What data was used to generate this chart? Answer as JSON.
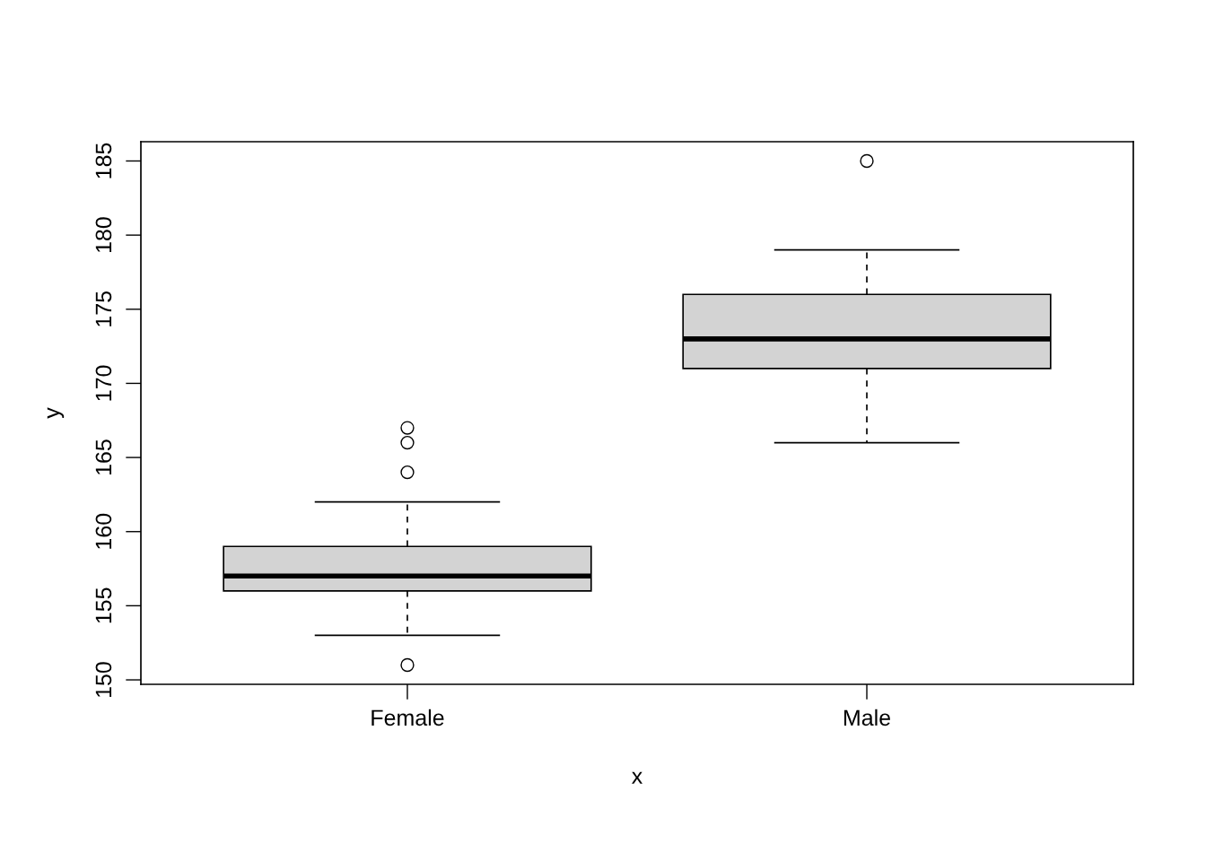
{
  "chart_data": {
    "type": "box",
    "xlabel": "x",
    "ylabel": "y",
    "categories": [
      "Female",
      "Male"
    ],
    "boxes": [
      {
        "low": 153,
        "q1": 156,
        "median": 157,
        "q3": 159,
        "high": 162,
        "outliers": [
          164,
          166,
          167,
          151
        ]
      },
      {
        "low": 166,
        "q1": 171,
        "median": 173,
        "q3": 176,
        "high": 179,
        "outliers": [
          185
        ]
      }
    ],
    "color": "#d3d3d3",
    "ylim": [
      149.7,
      186.3
    ],
    "yticks": [
      150,
      155,
      160,
      165,
      170,
      175,
      180,
      185
    ],
    "grid": false
  }
}
